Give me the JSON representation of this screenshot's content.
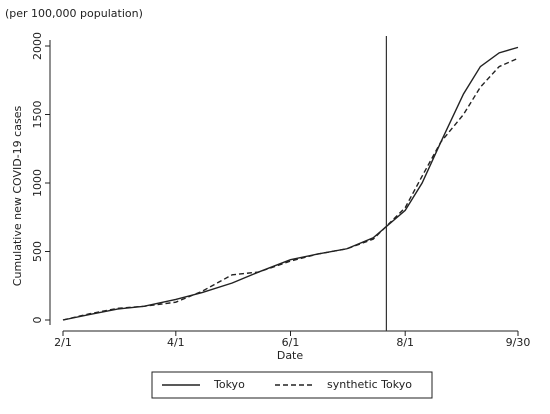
{
  "chart_data": {
    "type": "line",
    "unit_note": "(per 100,000 population)",
    "ylabel": "Cumulative new COVID-19 cases",
    "xlabel": "Date",
    "x": [
      "2/1",
      "2/15",
      "3/1",
      "3/15",
      "4/1",
      "4/15",
      "5/1",
      "5/15",
      "6/1",
      "6/15",
      "7/1",
      "7/15",
      "8/1",
      "8/10",
      "8/20",
      "9/1",
      "9/10",
      "9/20",
      "9/30"
    ],
    "series": [
      {
        "name": "Tokyo",
        "color": "#222222",
        "style": "solid",
        "values": [
          0,
          40,
          80,
          100,
          150,
          200,
          270,
          350,
          440,
          480,
          520,
          600,
          800,
          1000,
          1300,
          1650,
          1850,
          1950,
          1990
        ]
      },
      {
        "name": "synthetic Tokyo",
        "color": "#222222",
        "style": "dashed",
        "values": [
          0,
          45,
          85,
          100,
          130,
          210,
          330,
          350,
          430,
          480,
          520,
          590,
          820,
          1050,
          1300,
          1500,
          1700,
          1850,
          1910
        ]
      }
    ],
    "xlim": [
      "2/1",
      "9/30"
    ],
    "xticks": [
      "2/1",
      "4/1",
      "6/1",
      "8/1",
      "9/30"
    ],
    "ylim": [
      0,
      2000
    ],
    "yticks": [
      0,
      500,
      1000,
      1500,
      2000
    ],
    "vline": "7/22",
    "legend": "bottom"
  }
}
